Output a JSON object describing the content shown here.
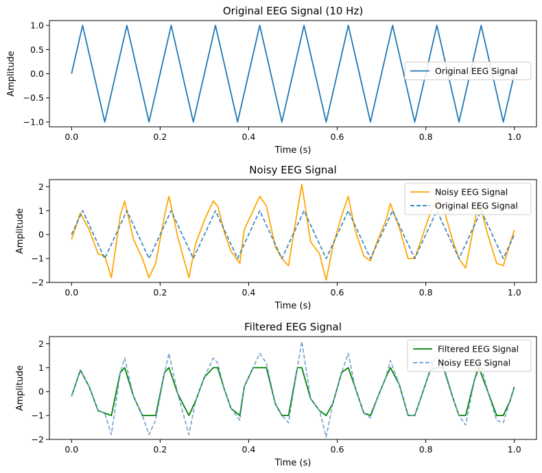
{
  "chart_data": [
    {
      "type": "line",
      "title": "Original EEG Signal (10 Hz)",
      "xlabel": "Time (s)",
      "ylabel": "Amplitude",
      "xlim": [
        -0.05,
        1.05
      ],
      "ylim": [
        -1.1,
        1.1
      ],
      "xticks": [
        0.0,
        0.2,
        0.4,
        0.6,
        0.8,
        1.0
      ],
      "xtick_labels": [
        "0.0",
        "0.2",
        "0.4",
        "0.6",
        "0.8",
        "1.0"
      ],
      "yticks": [
        -1.0,
        -0.5,
        0.0,
        0.5,
        1.0
      ],
      "ytick_labels": [
        "−1.0",
        "−0.5",
        "0.0",
        "0.5",
        "1.0"
      ],
      "legend_position": "center-right",
      "series": [
        {
          "name": "Original EEG Signal",
          "color": "#1f77b4",
          "style": "solid",
          "x": [
            0.0,
            0.025,
            0.05,
            0.075,
            0.1,
            0.125,
            0.15,
            0.175,
            0.2,
            0.225,
            0.25,
            0.275,
            0.3,
            0.325,
            0.35,
            0.375,
            0.4,
            0.425,
            0.45,
            0.475,
            0.5,
            0.525,
            0.55,
            0.575,
            0.6,
            0.625,
            0.65,
            0.675,
            0.7,
            0.725,
            0.75,
            0.775,
            0.8,
            0.825,
            0.85,
            0.875,
            0.9,
            0.925,
            0.95,
            0.975,
            1.0
          ],
          "y": [
            0,
            1,
            0,
            -1,
            0,
            1,
            0,
            -1,
            0,
            1,
            0,
            -1,
            0,
            1,
            0,
            -1,
            0,
            1,
            0,
            -1,
            0,
            1,
            0,
            -1,
            0,
            1,
            0,
            -1,
            0,
            1,
            0,
            -1,
            0,
            1,
            0,
            -1,
            0,
            1,
            0,
            -1,
            0
          ]
        }
      ]
    },
    {
      "type": "line",
      "title": "Noisy EEG Signal",
      "xlabel": "Time (s)",
      "ylabel": "Amplitude",
      "xlim": [
        -0.05,
        1.05
      ],
      "ylim": [
        -2.0,
        2.3
      ],
      "xticks": [
        0.0,
        0.2,
        0.4,
        0.6,
        0.8,
        1.0
      ],
      "xtick_labels": [
        "0.0",
        "0.2",
        "0.4",
        "0.6",
        "0.8",
        "1.0"
      ],
      "yticks": [
        -2,
        -1,
        0,
        1,
        2
      ],
      "ytick_labels": [
        "−2",
        "−1",
        "0",
        "1",
        "2"
      ],
      "legend_position": "top-right",
      "series": [
        {
          "name": "Noisy EEG Signal",
          "color": "#ffa500",
          "style": "solid",
          "x": [
            0.0,
            0.02,
            0.04,
            0.06,
            0.075,
            0.09,
            0.11,
            0.12,
            0.14,
            0.16,
            0.175,
            0.19,
            0.21,
            0.22,
            0.24,
            0.265,
            0.28,
            0.3,
            0.32,
            0.33,
            0.345,
            0.36,
            0.38,
            0.39,
            0.41,
            0.425,
            0.44,
            0.46,
            0.475,
            0.49,
            0.51,
            0.52,
            0.54,
            0.56,
            0.575,
            0.59,
            0.61,
            0.625,
            0.64,
            0.66,
            0.675,
            0.69,
            0.71,
            0.72,
            0.74,
            0.76,
            0.775,
            0.79,
            0.81,
            0.825,
            0.84,
            0.86,
            0.875,
            0.89,
            0.91,
            0.92,
            0.94,
            0.96,
            0.975,
            0.99,
            1.0
          ],
          "y": [
            -0.2,
            0.9,
            0.2,
            -0.8,
            -0.9,
            -1.8,
            0.8,
            1.4,
            -0.2,
            -1.0,
            -1.8,
            -1.2,
            0.8,
            1.6,
            -0.1,
            -1.8,
            -0.4,
            0.6,
            1.4,
            1.2,
            0.1,
            -0.7,
            -1.2,
            0.2,
            1.0,
            1.6,
            1.2,
            -0.5,
            -1.0,
            -1.3,
            1.0,
            2.1,
            -0.3,
            -0.8,
            -1.9,
            -0.5,
            0.8,
            1.6,
            0.2,
            -0.9,
            -1.1,
            -0.3,
            0.6,
            1.3,
            0.3,
            -1.0,
            -1.0,
            -0.2,
            0.9,
            1.5,
            1.1,
            -0.2,
            -1.0,
            -1.4,
            0.5,
            1.4,
            0.0,
            -1.2,
            -1.3,
            -0.4,
            0.2
          ]
        },
        {
          "name": "Original EEG Signal",
          "color": "#1f77b4",
          "style": "dashed",
          "x": [
            0.0,
            0.025,
            0.05,
            0.075,
            0.1,
            0.125,
            0.15,
            0.175,
            0.2,
            0.225,
            0.25,
            0.275,
            0.3,
            0.325,
            0.35,
            0.375,
            0.4,
            0.425,
            0.45,
            0.475,
            0.5,
            0.525,
            0.55,
            0.575,
            0.6,
            0.625,
            0.65,
            0.675,
            0.7,
            0.725,
            0.75,
            0.775,
            0.8,
            0.825,
            0.85,
            0.875,
            0.9,
            0.925,
            0.95,
            0.975,
            1.0
          ],
          "y": [
            0,
            1,
            0,
            -1,
            0,
            1,
            0,
            -1,
            0,
            1,
            0,
            -1,
            0,
            1,
            0,
            -1,
            0,
            1,
            0,
            -1,
            0,
            1,
            0,
            -1,
            0,
            1,
            0,
            -1,
            0,
            1,
            0,
            -1,
            0,
            1,
            0,
            -1,
            0,
            1,
            0,
            -1,
            0
          ]
        }
      ]
    },
    {
      "type": "line",
      "title": "Filtered EEG Signal",
      "xlabel": "Time (s)",
      "ylabel": "Amplitude",
      "xlim": [
        -0.05,
        1.05
      ],
      "ylim": [
        -2.0,
        2.3
      ],
      "xticks": [
        0.0,
        0.2,
        0.4,
        0.6,
        0.8,
        1.0
      ],
      "xtick_labels": [
        "0.0",
        "0.2",
        "0.4",
        "0.6",
        "0.8",
        "1.0"
      ],
      "yticks": [
        -2,
        -1,
        0,
        1,
        2
      ],
      "ytick_labels": [
        "−2",
        "−1",
        "0",
        "1",
        "2"
      ],
      "legend_position": "top-right",
      "series": [
        {
          "name": "Filtered EEG Signal",
          "color": "#008000",
          "style": "solid",
          "x": [
            0.0,
            0.02,
            0.04,
            0.06,
            0.075,
            0.09,
            0.11,
            0.12,
            0.14,
            0.16,
            0.175,
            0.19,
            0.21,
            0.22,
            0.24,
            0.265,
            0.28,
            0.3,
            0.32,
            0.33,
            0.345,
            0.36,
            0.38,
            0.39,
            0.41,
            0.425,
            0.44,
            0.46,
            0.475,
            0.49,
            0.51,
            0.52,
            0.54,
            0.56,
            0.575,
            0.59,
            0.61,
            0.625,
            0.64,
            0.66,
            0.675,
            0.69,
            0.71,
            0.72,
            0.74,
            0.76,
            0.775,
            0.79,
            0.81,
            0.825,
            0.84,
            0.86,
            0.875,
            0.89,
            0.91,
            0.92,
            0.94,
            0.96,
            0.975,
            0.99,
            1.0
          ],
          "y": [
            -0.2,
            0.9,
            0.2,
            -0.8,
            -0.9,
            -1.0,
            0.8,
            1.0,
            -0.2,
            -1.0,
            -1.0,
            -1.0,
            0.8,
            1.0,
            -0.1,
            -1.0,
            -0.4,
            0.6,
            1.0,
            1.0,
            0.1,
            -0.7,
            -1.0,
            0.2,
            1.0,
            1.0,
            1.0,
            -0.5,
            -1.0,
            -1.0,
            1.0,
            1.0,
            -0.3,
            -0.8,
            -1.0,
            -0.5,
            0.8,
            1.0,
            0.2,
            -0.9,
            -1.0,
            -0.3,
            0.6,
            1.0,
            0.3,
            -1.0,
            -1.0,
            -0.2,
            0.9,
            1.0,
            1.0,
            -0.2,
            -1.0,
            -1.0,
            0.5,
            1.0,
            0.0,
            -1.0,
            -1.0,
            -0.4,
            0.2
          ]
        },
        {
          "name": "Noisy EEG Signal",
          "color": "#6699cc",
          "style": "dashed",
          "x": [
            0.0,
            0.02,
            0.04,
            0.06,
            0.075,
            0.09,
            0.11,
            0.12,
            0.14,
            0.16,
            0.175,
            0.19,
            0.21,
            0.22,
            0.24,
            0.265,
            0.28,
            0.3,
            0.32,
            0.33,
            0.345,
            0.36,
            0.38,
            0.39,
            0.41,
            0.425,
            0.44,
            0.46,
            0.475,
            0.49,
            0.51,
            0.52,
            0.54,
            0.56,
            0.575,
            0.59,
            0.61,
            0.625,
            0.64,
            0.66,
            0.675,
            0.69,
            0.71,
            0.72,
            0.74,
            0.76,
            0.775,
            0.79,
            0.81,
            0.825,
            0.84,
            0.86,
            0.875,
            0.89,
            0.91,
            0.92,
            0.94,
            0.96,
            0.975,
            0.99,
            1.0
          ],
          "y": [
            -0.2,
            0.9,
            0.2,
            -0.8,
            -0.9,
            -1.8,
            0.8,
            1.4,
            -0.2,
            -1.0,
            -1.8,
            -1.2,
            0.8,
            1.6,
            -0.1,
            -1.8,
            -0.4,
            0.6,
            1.4,
            1.2,
            0.1,
            -0.7,
            -1.2,
            0.2,
            1.0,
            1.6,
            1.2,
            -0.5,
            -1.0,
            -1.3,
            1.0,
            2.1,
            -0.3,
            -0.8,
            -1.9,
            -0.5,
            0.8,
            1.6,
            0.2,
            -0.9,
            -1.1,
            -0.3,
            0.6,
            1.3,
            0.3,
            -1.0,
            -1.0,
            -0.2,
            0.9,
            1.5,
            1.1,
            -0.2,
            -1.0,
            -1.4,
            0.5,
            1.4,
            0.0,
            -1.2,
            -1.3,
            -0.4,
            0.2
          ]
        }
      ]
    }
  ]
}
